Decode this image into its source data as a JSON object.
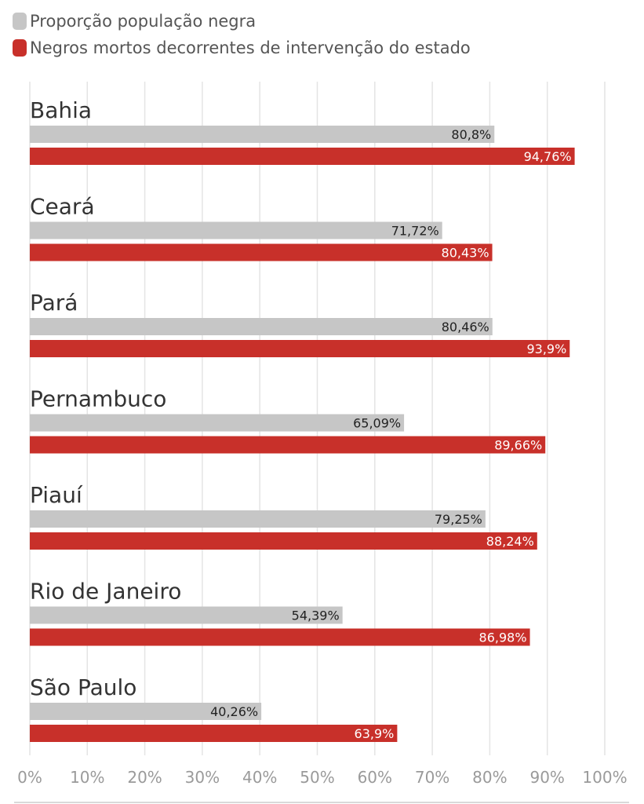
{
  "legend": [
    {
      "label": "Proporção população negra",
      "color": "#c6c6c6"
    },
    {
      "label": "Negros mortos decorrentes de intervenção do estado",
      "color": "#c8302a"
    }
  ],
  "chart_data": {
    "type": "bar",
    "orientation": "horizontal",
    "categories": [
      "Bahia",
      "Ceará",
      "Pará",
      "Pernambuco",
      "Piauí",
      "Rio de Janeiro",
      "São Paulo"
    ],
    "series": [
      {
        "name": "Proporção população negra",
        "color": "#c6c6c6",
        "values": [
          80.8,
          71.72,
          80.46,
          65.09,
          79.25,
          54.39,
          40.26
        ],
        "labels": [
          "80,8%",
          "71,72%",
          "80,46%",
          "65,09%",
          "79,25%",
          "54,39%",
          "40,26%"
        ]
      },
      {
        "name": "Negros mortos decorrentes de intervenção do estado",
        "color": "#c8302a",
        "values": [
          94.76,
          80.43,
          93.9,
          89.66,
          88.24,
          86.98,
          63.9
        ],
        "labels": [
          "94,76%",
          "80,43%",
          "93,9%",
          "89,66%",
          "88,24%",
          "86,98%",
          "63,9%"
        ]
      }
    ],
    "xlim": [
      0,
      100
    ],
    "xticks": [
      "0%",
      "10%",
      "20%",
      "30%",
      "40%",
      "50%",
      "60%",
      "70%",
      "80%",
      "90%",
      "100%"
    ],
    "grid": true,
    "legend_position": "top-left"
  }
}
